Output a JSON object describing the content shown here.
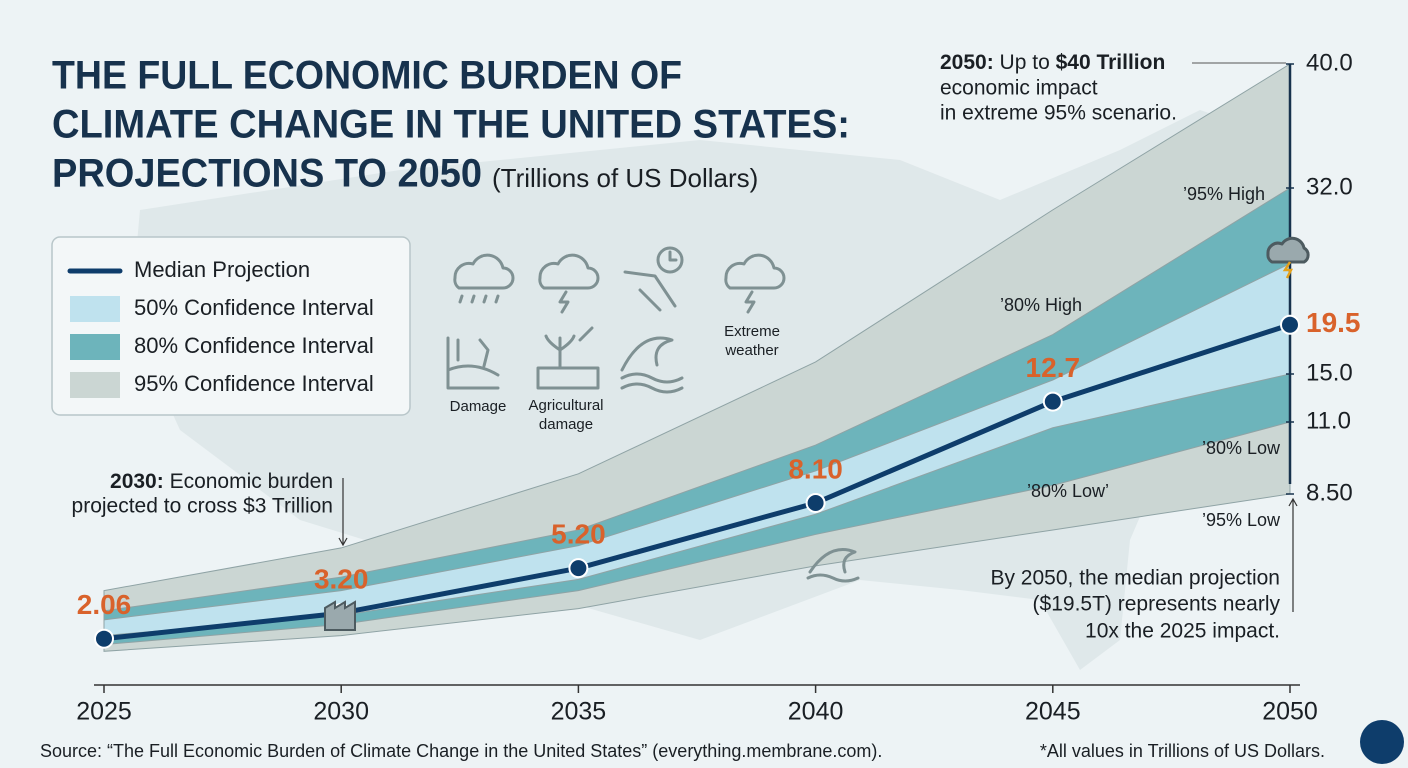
{
  "chart_data": {
    "type": "line",
    "title_lines": [
      "THE FULL ECONOMIC BURDEN OF",
      "CLIMATE CHANGE IN THE UNITED STATES:",
      "PROJECTIONS TO 2050"
    ],
    "subtitle": "(Trillions of US Dollars)",
    "x": [
      2025,
      2030,
      2035,
      2040,
      2045,
      2050
    ],
    "xlim": [
      2025,
      2050
    ],
    "xticks": [
      2025,
      2030,
      2035,
      2040,
      2045,
      2050
    ],
    "ylim": [
      0,
      40
    ],
    "yticks": [
      {
        "value": 8.5,
        "label": "8.50"
      },
      {
        "value": 11,
        "label": "11.0"
      },
      {
        "value": 15,
        "label": "15.0"
      },
      {
        "value": 32,
        "label": "32.0"
      },
      {
        "value": 40,
        "label": "40.0"
      }
    ],
    "legend": "top-left",
    "series": [
      {
        "name": "Median Projection",
        "color": "#0e3d6b",
        "label_color": "#d9622b",
        "values": [
          2.06,
          3.2,
          5.2,
          8.1,
          12.7,
          19.5
        ],
        "value_labels": [
          "2.06",
          "3.20",
          "5.20",
          "8.10",
          "12.7",
          "19.5"
        ]
      }
    ],
    "bands": [
      {
        "name": "95% Confidence Interval",
        "color": "#cbd6d3",
        "upper": [
          4.2,
          6.1,
          9.2,
          16.1,
          30.0,
          40
        ],
        "lower": [
          1.5,
          2.2,
          3.4,
          5.3,
          6.9,
          8.5
        ]
      },
      {
        "name": "80% Confidence Interval",
        "color": "#6db4bb",
        "upper": [
          3.3,
          4.8,
          6.9,
          10.2,
          18.6,
          32
        ],
        "lower": [
          1.8,
          2.7,
          4.2,
          6.7,
          8.8,
          11
        ]
      },
      {
        "name": "50% Confidence Interval",
        "color": "#bfe2ee",
        "upper": [
          2.9,
          4.2,
          6.2,
          9.3,
          14.5,
          25.1
        ],
        "lower": [
          2.2,
          3.1,
          4.7,
          7.6,
          10.8,
          15
        ]
      }
    ],
    "legend_order": [
      0,
      3,
      2,
      1
    ],
    "band_labels": [
      "’95% High",
      "’80% High",
      "’80% Low",
      "’80% Low’",
      "’95% Low"
    ],
    "icon_labels": {
      "damage": [
        "Damage"
      ],
      "agricultural": [
        "Agricultural",
        "damage"
      ],
      "extreme": [
        "Extreme",
        "weather"
      ]
    },
    "annotation_2050": {
      "head": "2050:",
      "mid": " Up to ",
      "bold": "$40 Trillion",
      "lines": [
        "economic impact",
        "in extreme 95% scenario."
      ]
    },
    "annotation_2030": {
      "head": "2030:",
      "rest": " Economic burden",
      "lines": [
        "projected to cross $3 Trillion"
      ]
    },
    "annotation_median": [
      "By 2050, the median projection",
      "($19.5T) represents nearly",
      "10x the 2025 impact."
    ],
    "source": "Source: “The Full Economic Burden of Climate Change in the United States” (everything.membrane.com).",
    "footnote": "*All values in Trillions of US Dollars."
  }
}
